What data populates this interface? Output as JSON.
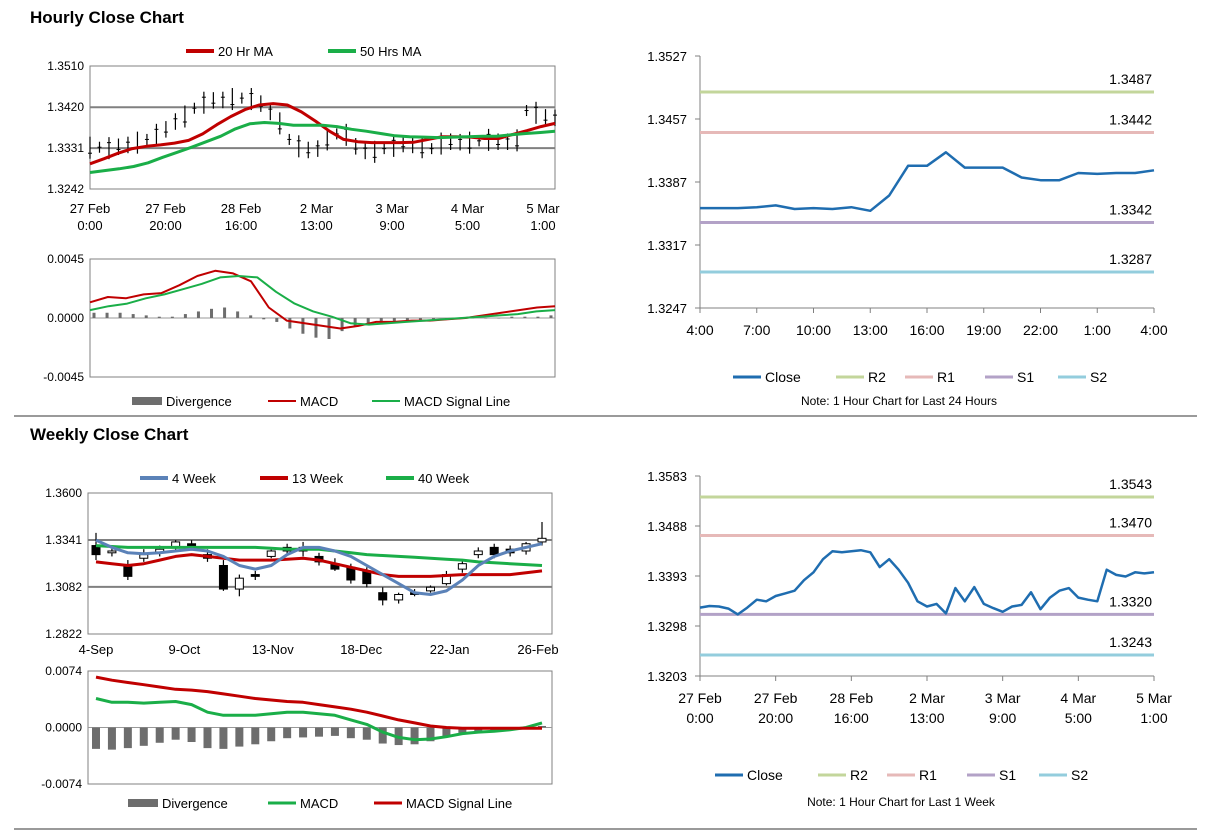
{
  "sections": {
    "hourly_title": "Hourly Close Chart",
    "weekly_title": "Weekly Close Chart"
  },
  "colors": {
    "ma_red": "#c00000",
    "ma_green": "#1aae48",
    "ma_blue": "#5b82b8",
    "close_blue": "#1f6db0",
    "r2": "#c3d69b",
    "r1": "#e6b9b8",
    "s1": "#b3a2c7",
    "s2": "#93cddd",
    "divergence": "#6d6d6d",
    "grid": "#808080"
  },
  "chart_data": [
    {
      "id": "hourly_price",
      "type": "line",
      "title": "",
      "legend": [
        "20 Hr MA",
        "50 Hrs MA"
      ],
      "y_ticks": [
        "1.3510",
        "1.3420",
        "1.3331",
        "1.3242"
      ],
      "ylim": [
        1.3242,
        1.351
      ],
      "x_ticks": [
        [
          "27 Feb",
          "0:00"
        ],
        [
          "27 Feb",
          "20:00"
        ],
        [
          "28 Feb",
          "16:00"
        ],
        [
          "2 Mar",
          "13:00"
        ],
        [
          "3 Mar",
          "9:00"
        ],
        [
          "4 Mar",
          "5:00"
        ],
        [
          "5 Mar",
          "1:00"
        ]
      ],
      "price": [
        1.3332,
        1.3333,
        1.3331,
        1.3334,
        1.3338,
        1.3343,
        1.335,
        1.336,
        1.3372,
        1.3389,
        1.34,
        1.3418,
        1.343,
        1.3435,
        1.3436,
        1.3438,
        1.344,
        1.3438,
        1.3428,
        1.341,
        1.3385,
        1.335,
        1.3335,
        1.3327,
        1.333,
        1.335,
        1.3362,
        1.336,
        1.3335,
        1.3325,
        1.3323,
        1.333,
        1.3336,
        1.334,
        1.3338,
        1.3333,
        1.333,
        1.3341,
        1.3345,
        1.3344,
        1.3343,
        1.3347,
        1.3349,
        1.3345,
        1.3345,
        1.3348,
        1.3413,
        1.3408,
        1.3398,
        1.3397
      ],
      "series": [
        {
          "name": "20 Hr MA",
          "values": [
            1.3297,
            1.3308,
            1.332,
            1.333,
            1.3335,
            1.3338,
            1.3342,
            1.3348,
            1.3362,
            1.3382,
            1.34,
            1.3415,
            1.3425,
            1.3428,
            1.3425,
            1.341,
            1.339,
            1.3368,
            1.335,
            1.3345,
            1.3343,
            1.3343,
            1.3343,
            1.3344,
            1.335,
            1.3356,
            1.3356,
            1.3355,
            1.3352,
            1.3352,
            1.3361,
            1.3369,
            1.3378,
            1.3385
          ]
        },
        {
          "name": "50 Hrs MA",
          "values": [
            1.3278,
            1.3282,
            1.3286,
            1.3291,
            1.3299,
            1.3311,
            1.3322,
            1.3333,
            1.3345,
            1.3357,
            1.3373,
            1.3384,
            1.3387,
            1.3385,
            1.3381,
            1.3381,
            1.3381,
            1.3378,
            1.3372,
            1.3368,
            1.3363,
            1.3358,
            1.3356,
            1.3355,
            1.3354,
            1.3355,
            1.3356,
            1.3357,
            1.3357,
            1.336,
            1.3363,
            1.3365,
            1.3368
          ]
        }
      ]
    },
    {
      "id": "hourly_macd",
      "type": "line",
      "legend": [
        "Divergence",
        "MACD",
        "MACD Signal Line"
      ],
      "y_ticks": [
        "0.0045",
        "0.0000",
        "-0.0045"
      ],
      "ylim": [
        -0.0045,
        0.0045
      ],
      "series": [
        {
          "name": "MACD",
          "values": [
            0.0012,
            0.0016,
            0.0015,
            0.0018,
            0.0019,
            0.0025,
            0.0032,
            0.0036,
            0.0034,
            0.0028,
            0.0008,
            -0.0002,
            -0.0004,
            -0.0006,
            -0.0008,
            -0.0006,
            -0.0003,
            -0.0003,
            -0.0002,
            -0.0002,
            -0.0001,
            0.0,
            0.0002,
            0.0004,
            0.0006,
            0.0008,
            0.0009
          ]
        },
        {
          "name": "MACD Signal Line",
          "values": [
            0.0006,
            0.0009,
            0.0011,
            0.0015,
            0.0018,
            0.0022,
            0.0026,
            0.0031,
            0.0032,
            0.0031,
            0.002,
            0.0011,
            0.0005,
            0.0001,
            -0.0004,
            -0.0005,
            -0.0004,
            -0.0003,
            -0.0002,
            -0.0001,
            0.0,
            0.0001,
            0.0002,
            0.0003,
            0.0005,
            0.0006
          ]
        },
        {
          "name": "Divergence",
          "values": [
            0.0004,
            0.0004,
            0.0004,
            0.0003,
            0.0002,
            0.0001,
            0.0001,
            0.0003,
            0.0005,
            0.0007,
            0.0008,
            0.0005,
            0.0002,
            -0.0001,
            -0.0003,
            -0.0008,
            -0.0012,
            -0.0015,
            -0.0016,
            -0.001,
            -0.0006,
            -0.0004,
            -0.0004,
            -0.0003,
            -0.0002,
            -0.0002,
            -0.0001,
            0.0,
            0.0,
            0.0,
            0.0,
            0.0,
            0.0001,
            0.0001,
            0.0001,
            0.0002
          ]
        }
      ]
    },
    {
      "id": "hourly_levels",
      "type": "line",
      "title": "",
      "y_ticks": [
        "1.3527",
        "1.3457",
        "1.3387",
        "1.3317",
        "1.3247"
      ],
      "ylim": [
        1.3247,
        1.3527
      ],
      "x_ticks": [
        "4:00",
        "7:00",
        "10:00",
        "13:00",
        "16:00",
        "19:00",
        "22:00",
        "1:00",
        "4:00"
      ],
      "series": [
        {
          "name": "Close",
          "values": [
            1.3358,
            1.3358,
            1.3358,
            1.3359,
            1.3361,
            1.3357,
            1.3358,
            1.3357,
            1.3359,
            1.3355,
            1.3372,
            1.3405,
            1.3405,
            1.342,
            1.3403,
            1.3403,
            1.3403,
            1.3392,
            1.3389,
            1.3389,
            1.3397,
            1.3396,
            1.3397,
            1.3397,
            1.34
          ]
        },
        {
          "name": "R2",
          "value": 1.3487
        },
        {
          "name": "R1",
          "value": 1.3442
        },
        {
          "name": "S1",
          "value": 1.3342
        },
        {
          "name": "S2",
          "value": 1.3287
        }
      ],
      "level_labels": [
        "1.3487",
        "1.3442",
        "1.3342",
        "1.3287"
      ],
      "legend": [
        "Close",
        "R2",
        "R1",
        "S1",
        "S2"
      ],
      "note": "Note: 1 Hour Chart for Last 24 Hours"
    },
    {
      "id": "weekly_price",
      "type": "line",
      "legend": [
        "4 Week",
        "13 Week",
        "40 Week"
      ],
      "y_ticks": [
        "1.3600",
        "1.3341",
        "1.3082",
        "1.2822"
      ],
      "ylim": [
        1.2822,
        1.36
      ],
      "x_ticks": [
        "4-Sep",
        "9-Oct",
        "13-Nov",
        "18-Dec",
        "22-Jan",
        "26-Feb"
      ],
      "candles": [
        {
          "o": 1.331,
          "c": 1.326,
          "h": 1.338,
          "l": 1.323
        },
        {
          "o": 1.327,
          "c": 1.328,
          "h": 1.331,
          "l": 1.325
        },
        {
          "o": 1.32,
          "c": 1.314,
          "h": 1.323,
          "l": 1.312
        },
        {
          "o": 1.324,
          "c": 1.326,
          "h": 1.329,
          "l": 1.322
        },
        {
          "o": 1.327,
          "c": 1.329,
          "h": 1.331,
          "l": 1.325
        },
        {
          "o": 1.33,
          "c": 1.333,
          "h": 1.334,
          "l": 1.328
        },
        {
          "o": 1.332,
          "c": 1.331,
          "h": 1.334,
          "l": 1.33
        },
        {
          "o": 1.326,
          "c": 1.324,
          "h": 1.329,
          "l": 1.322
        },
        {
          "o": 1.32,
          "c": 1.307,
          "h": 1.323,
          "l": 1.306
        },
        {
          "o": 1.307,
          "c": 1.313,
          "h": 1.315,
          "l": 1.303
        },
        {
          "o": 1.315,
          "c": 1.314,
          "h": 1.317,
          "l": 1.312
        },
        {
          "o": 1.325,
          "c": 1.328,
          "h": 1.33,
          "l": 1.324
        },
        {
          "o": 1.33,
          "c": 1.328,
          "h": 1.332,
          "l": 1.326
        },
        {
          "o": 1.33,
          "c": 1.328,
          "h": 1.333,
          "l": 1.325
        },
        {
          "o": 1.325,
          "c": 1.322,
          "h": 1.327,
          "l": 1.32
        },
        {
          "o": 1.321,
          "c": 1.318,
          "h": 1.324,
          "l": 1.317
        },
        {
          "o": 1.319,
          "c": 1.312,
          "h": 1.321,
          "l": 1.31
        },
        {
          "o": 1.317,
          "c": 1.31,
          "h": 1.319,
          "l": 1.308
        },
        {
          "o": 1.305,
          "c": 1.301,
          "h": 1.308,
          "l": 1.298
        },
        {
          "o": 1.301,
          "c": 1.304,
          "h": 1.305,
          "l": 1.299
        },
        {
          "o": 1.305,
          "c": 1.304,
          "h": 1.307,
          "l": 1.303
        },
        {
          "o": 1.306,
          "c": 1.308,
          "h": 1.309,
          "l": 1.305
        },
        {
          "o": 1.31,
          "c": 1.315,
          "h": 1.317,
          "l": 1.309
        },
        {
          "o": 1.318,
          "c": 1.321,
          "h": 1.323,
          "l": 1.316
        },
        {
          "o": 1.326,
          "c": 1.328,
          "h": 1.33,
          "l": 1.324
        },
        {
          "o": 1.33,
          "c": 1.326,
          "h": 1.332,
          "l": 1.324
        },
        {
          "o": 1.329,
          "c": 1.327,
          "h": 1.331,
          "l": 1.325
        },
        {
          "o": 1.328,
          "c": 1.332,
          "h": 1.333,
          "l": 1.326
        },
        {
          "o": 1.333,
          "c": 1.335,
          "h": 1.344,
          "l": 1.331
        }
      ],
      "series": [
        {
          "name": "4 Week",
          "values": [
            1.334,
            1.33,
            1.327,
            1.3265,
            1.327,
            1.328,
            1.329,
            1.328,
            1.325,
            1.32,
            1.318,
            1.32,
            1.326,
            1.33,
            1.33,
            1.328,
            1.325,
            1.32,
            1.315,
            1.31,
            1.305,
            1.304,
            1.306,
            1.312,
            1.32,
            1.325,
            1.328,
            1.33,
            1.332
          ]
        },
        {
          "name": "13 Week",
          "values": [
            1.322,
            1.321,
            1.32,
            1.321,
            1.323,
            1.325,
            1.326,
            1.325,
            1.324,
            1.323,
            1.323,
            1.323,
            1.3235,
            1.324,
            1.323,
            1.321,
            1.319,
            1.317,
            1.315,
            1.314,
            1.314,
            1.314,
            1.3145,
            1.315,
            1.315,
            1.315,
            1.315,
            1.316,
            1.317
          ]
        },
        {
          "name": "40 Week",
          "values": [
            1.331,
            1.3305,
            1.33,
            1.33,
            1.33,
            1.33,
            1.33,
            1.33,
            1.33,
            1.33,
            1.33,
            1.3295,
            1.329,
            1.329,
            1.329,
            1.328,
            1.327,
            1.326,
            1.3255,
            1.325,
            1.3245,
            1.324,
            1.3235,
            1.323,
            1.322,
            1.3215,
            1.321,
            1.3205,
            1.32
          ]
        }
      ]
    },
    {
      "id": "weekly_macd",
      "type": "line",
      "legend": [
        "Divergence",
        "MACD",
        "MACD Signal Line"
      ],
      "y_ticks": [
        "0.0074",
        "0.0000",
        "-0.0074"
      ],
      "ylim": [
        -0.0074,
        0.0074
      ],
      "series": [
        {
          "name": "MACD",
          "values": [
            0.0038,
            0.0033,
            0.0033,
            0.0032,
            0.0033,
            0.0034,
            0.003,
            0.002,
            0.0016,
            0.0016,
            0.0016,
            0.0018,
            0.002,
            0.002,
            0.0018,
            0.0016,
            0.001,
            0.0004,
            -0.0006,
            -0.0013,
            -0.0016,
            -0.0015,
            -0.0012,
            -0.0008,
            -0.0006,
            -0.0005,
            -0.0003,
            0.0,
            0.0006
          ]
        },
        {
          "name": "MACD Signal Line",
          "values": [
            0.0066,
            0.0062,
            0.0059,
            0.0056,
            0.0053,
            0.005,
            0.0049,
            0.0047,
            0.0044,
            0.0041,
            0.0038,
            0.0036,
            0.0034,
            0.0033,
            0.003,
            0.0027,
            0.0024,
            0.002,
            0.0015,
            0.001,
            0.0006,
            0.0002,
            0.0,
            -0.0001,
            -0.0001,
            -0.0001,
            -0.0001,
            -0.0001,
            -0.0001
          ]
        },
        {
          "name": "Divergence",
          "values": [
            -0.0028,
            -0.0029,
            -0.0027,
            -0.0024,
            -0.002,
            -0.0016,
            -0.0019,
            -0.0027,
            -0.0028,
            -0.0025,
            -0.0022,
            -0.0018,
            -0.0014,
            -0.0013,
            -0.0012,
            -0.0011,
            -0.0014,
            -0.0016,
            -0.0021,
            -0.0023,
            -0.0022,
            -0.0018,
            -0.0012,
            -0.0007,
            -0.0005,
            -0.0004,
            -0.0002,
            0.0,
            0.0002
          ]
        }
      ]
    },
    {
      "id": "weekly_levels",
      "type": "line",
      "y_ticks": [
        "1.3583",
        "1.3488",
        "1.3393",
        "1.3298",
        "1.3203"
      ],
      "ylim": [
        1.3203,
        1.3583
      ],
      "x_ticks": [
        [
          "27 Feb",
          "0:00"
        ],
        [
          "27 Feb",
          "20:00"
        ],
        [
          "28 Feb",
          "16:00"
        ],
        [
          "2 Mar",
          "13:00"
        ],
        [
          "3 Mar",
          "9:00"
        ],
        [
          "4 Mar",
          "5:00"
        ],
        [
          "5 Mar",
          "1:00"
        ]
      ],
      "series": [
        {
          "name": "Close",
          "values": [
            1.3333,
            1.3336,
            1.3335,
            1.3331,
            1.332,
            1.3333,
            1.3348,
            1.3345,
            1.3355,
            1.336,
            1.3365,
            1.3385,
            1.34,
            1.3425,
            1.344,
            1.3438,
            1.344,
            1.3442,
            1.3438,
            1.341,
            1.3425,
            1.3405,
            1.338,
            1.3345,
            1.3335,
            1.334,
            1.3322,
            1.337,
            1.3345,
            1.3372,
            1.334,
            1.3332,
            1.3325,
            1.3335,
            1.3338,
            1.3362,
            1.333,
            1.3352,
            1.3365,
            1.337,
            1.3352,
            1.3348,
            1.3345,
            1.3405,
            1.3395,
            1.3392,
            1.34,
            1.3398,
            1.34
          ]
        },
        {
          "name": "R2",
          "value": 1.3543
        },
        {
          "name": "R1",
          "value": 1.347
        },
        {
          "name": "S1",
          "value": 1.332
        },
        {
          "name": "S2",
          "value": 1.3243
        }
      ],
      "level_labels": [
        "1.3543",
        "1.3470",
        "1.3320",
        "1.3243"
      ],
      "legend": [
        "Close",
        "R2",
        "R1",
        "S1",
        "S2"
      ],
      "note": "Note: 1 Hour Chart for  Last 1 Week"
    }
  ]
}
